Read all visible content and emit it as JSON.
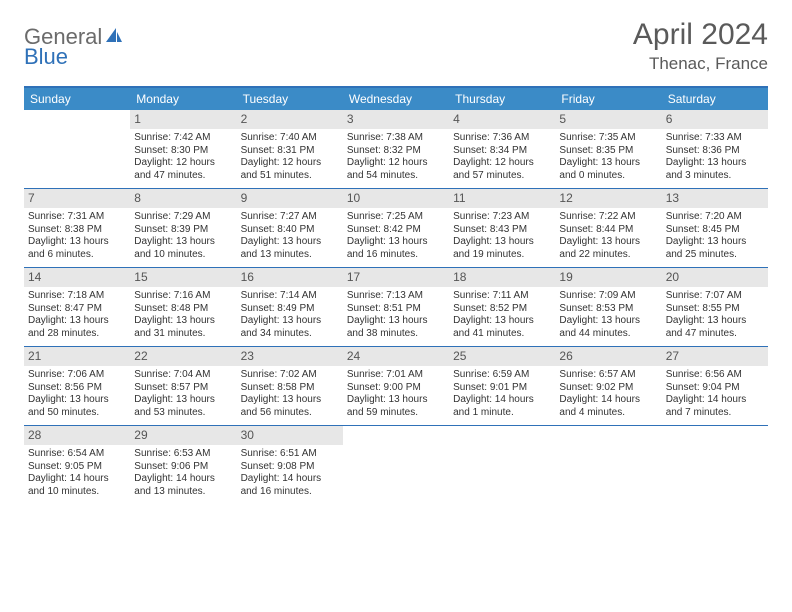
{
  "logo": {
    "part1": "General",
    "part2": "Blue"
  },
  "title": "April 2024",
  "location": "Thenac, France",
  "colors": {
    "header_bg": "#3b8bc7",
    "header_border": "#2f71b8",
    "daynum_bg": "#e7e7e7",
    "text": "#333333",
    "muted": "#5a5a5a",
    "logo_blue": "#2f71b8",
    "logo_gray": "#6b6b6b"
  },
  "day_names": [
    "Sunday",
    "Monday",
    "Tuesday",
    "Wednesday",
    "Thursday",
    "Friday",
    "Saturday"
  ],
  "weeks": [
    [
      {
        "empty": true
      },
      {
        "n": "1",
        "sr": "Sunrise: 7:42 AM",
        "ss": "Sunset: 8:30 PM",
        "dl": "Daylight: 12 hours and 47 minutes."
      },
      {
        "n": "2",
        "sr": "Sunrise: 7:40 AM",
        "ss": "Sunset: 8:31 PM",
        "dl": "Daylight: 12 hours and 51 minutes."
      },
      {
        "n": "3",
        "sr": "Sunrise: 7:38 AM",
        "ss": "Sunset: 8:32 PM",
        "dl": "Daylight: 12 hours and 54 minutes."
      },
      {
        "n": "4",
        "sr": "Sunrise: 7:36 AM",
        "ss": "Sunset: 8:34 PM",
        "dl": "Daylight: 12 hours and 57 minutes."
      },
      {
        "n": "5",
        "sr": "Sunrise: 7:35 AM",
        "ss": "Sunset: 8:35 PM",
        "dl": "Daylight: 13 hours and 0 minutes."
      },
      {
        "n": "6",
        "sr": "Sunrise: 7:33 AM",
        "ss": "Sunset: 8:36 PM",
        "dl": "Daylight: 13 hours and 3 minutes."
      }
    ],
    [
      {
        "n": "7",
        "sr": "Sunrise: 7:31 AM",
        "ss": "Sunset: 8:38 PM",
        "dl": "Daylight: 13 hours and 6 minutes."
      },
      {
        "n": "8",
        "sr": "Sunrise: 7:29 AM",
        "ss": "Sunset: 8:39 PM",
        "dl": "Daylight: 13 hours and 10 minutes."
      },
      {
        "n": "9",
        "sr": "Sunrise: 7:27 AM",
        "ss": "Sunset: 8:40 PM",
        "dl": "Daylight: 13 hours and 13 minutes."
      },
      {
        "n": "10",
        "sr": "Sunrise: 7:25 AM",
        "ss": "Sunset: 8:42 PM",
        "dl": "Daylight: 13 hours and 16 minutes."
      },
      {
        "n": "11",
        "sr": "Sunrise: 7:23 AM",
        "ss": "Sunset: 8:43 PM",
        "dl": "Daylight: 13 hours and 19 minutes."
      },
      {
        "n": "12",
        "sr": "Sunrise: 7:22 AM",
        "ss": "Sunset: 8:44 PM",
        "dl": "Daylight: 13 hours and 22 minutes."
      },
      {
        "n": "13",
        "sr": "Sunrise: 7:20 AM",
        "ss": "Sunset: 8:45 PM",
        "dl": "Daylight: 13 hours and 25 minutes."
      }
    ],
    [
      {
        "n": "14",
        "sr": "Sunrise: 7:18 AM",
        "ss": "Sunset: 8:47 PM",
        "dl": "Daylight: 13 hours and 28 minutes."
      },
      {
        "n": "15",
        "sr": "Sunrise: 7:16 AM",
        "ss": "Sunset: 8:48 PM",
        "dl": "Daylight: 13 hours and 31 minutes."
      },
      {
        "n": "16",
        "sr": "Sunrise: 7:14 AM",
        "ss": "Sunset: 8:49 PM",
        "dl": "Daylight: 13 hours and 34 minutes."
      },
      {
        "n": "17",
        "sr": "Sunrise: 7:13 AM",
        "ss": "Sunset: 8:51 PM",
        "dl": "Daylight: 13 hours and 38 minutes."
      },
      {
        "n": "18",
        "sr": "Sunrise: 7:11 AM",
        "ss": "Sunset: 8:52 PM",
        "dl": "Daylight: 13 hours and 41 minutes."
      },
      {
        "n": "19",
        "sr": "Sunrise: 7:09 AM",
        "ss": "Sunset: 8:53 PM",
        "dl": "Daylight: 13 hours and 44 minutes."
      },
      {
        "n": "20",
        "sr": "Sunrise: 7:07 AM",
        "ss": "Sunset: 8:55 PM",
        "dl": "Daylight: 13 hours and 47 minutes."
      }
    ],
    [
      {
        "n": "21",
        "sr": "Sunrise: 7:06 AM",
        "ss": "Sunset: 8:56 PM",
        "dl": "Daylight: 13 hours and 50 minutes."
      },
      {
        "n": "22",
        "sr": "Sunrise: 7:04 AM",
        "ss": "Sunset: 8:57 PM",
        "dl": "Daylight: 13 hours and 53 minutes."
      },
      {
        "n": "23",
        "sr": "Sunrise: 7:02 AM",
        "ss": "Sunset: 8:58 PM",
        "dl": "Daylight: 13 hours and 56 minutes."
      },
      {
        "n": "24",
        "sr": "Sunrise: 7:01 AM",
        "ss": "Sunset: 9:00 PM",
        "dl": "Daylight: 13 hours and 59 minutes."
      },
      {
        "n": "25",
        "sr": "Sunrise: 6:59 AM",
        "ss": "Sunset: 9:01 PM",
        "dl": "Daylight: 14 hours and 1 minute."
      },
      {
        "n": "26",
        "sr": "Sunrise: 6:57 AM",
        "ss": "Sunset: 9:02 PM",
        "dl": "Daylight: 14 hours and 4 minutes."
      },
      {
        "n": "27",
        "sr": "Sunrise: 6:56 AM",
        "ss": "Sunset: 9:04 PM",
        "dl": "Daylight: 14 hours and 7 minutes."
      }
    ],
    [
      {
        "n": "28",
        "sr": "Sunrise: 6:54 AM",
        "ss": "Sunset: 9:05 PM",
        "dl": "Daylight: 14 hours and 10 minutes."
      },
      {
        "n": "29",
        "sr": "Sunrise: 6:53 AM",
        "ss": "Sunset: 9:06 PM",
        "dl": "Daylight: 14 hours and 13 minutes."
      },
      {
        "n": "30",
        "sr": "Sunrise: 6:51 AM",
        "ss": "Sunset: 9:08 PM",
        "dl": "Daylight: 14 hours and 16 minutes."
      },
      {
        "empty": true
      },
      {
        "empty": true
      },
      {
        "empty": true
      },
      {
        "empty": true
      }
    ]
  ]
}
